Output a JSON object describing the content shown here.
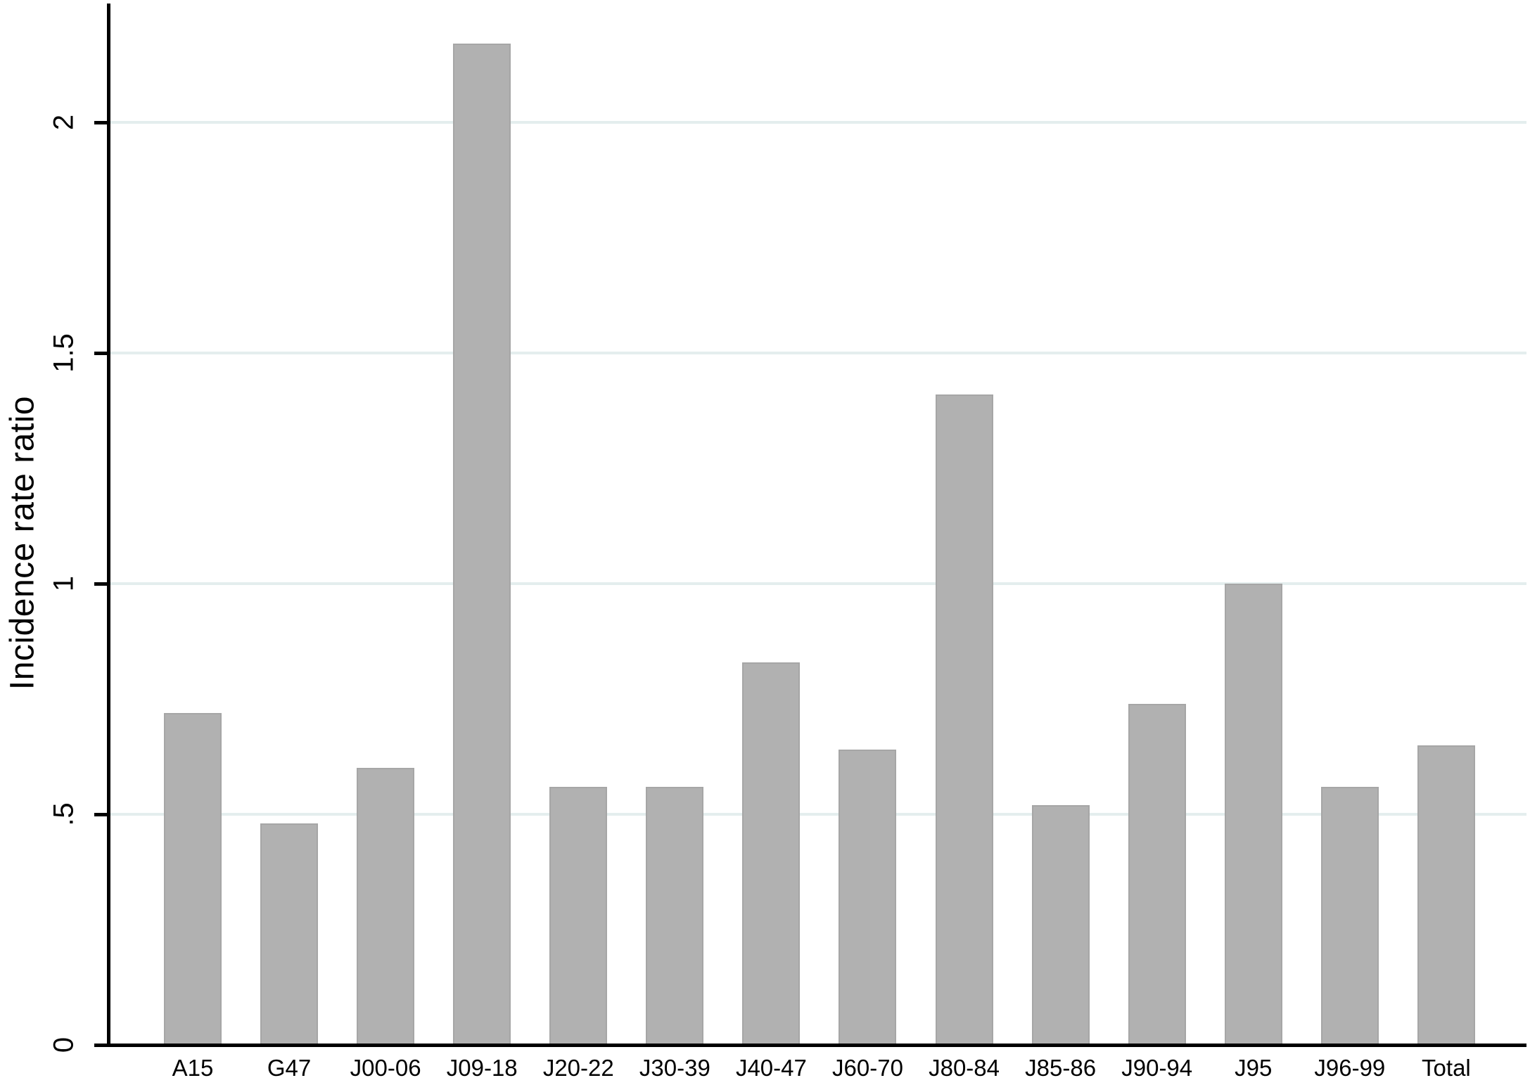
{
  "chart_data": {
    "type": "bar",
    "title": "",
    "xlabel": "",
    "ylabel": "Incidence rate ratio",
    "categories": [
      "A15",
      "G47",
      "J00-06",
      "J09-18",
      "J20-22",
      "J30-39",
      "J40-47",
      "J60-70",
      "J80-84",
      "J85-86",
      "J90-94",
      "J95",
      "J96-99",
      "Total"
    ],
    "values": [
      0.72,
      0.48,
      0.6,
      2.17,
      0.56,
      0.56,
      0.83,
      0.64,
      1.41,
      0.52,
      0.74,
      1.0,
      0.56,
      0.65
    ],
    "ylim": [
      0,
      2.26
    ],
    "yticks": [
      0,
      0.5,
      1,
      1.5,
      2
    ],
    "ytick_labels": [
      "0",
      ".5",
      "1",
      "1.5",
      "2"
    ],
    "grid": true,
    "legend": false,
    "bar_color": "#b1b1b1",
    "bar_border_color": "#a6a6a6",
    "grid_color": "#e4eeee",
    "axis_color": "#000000",
    "text_color": "#000000",
    "background_color": "#ffffff"
  }
}
